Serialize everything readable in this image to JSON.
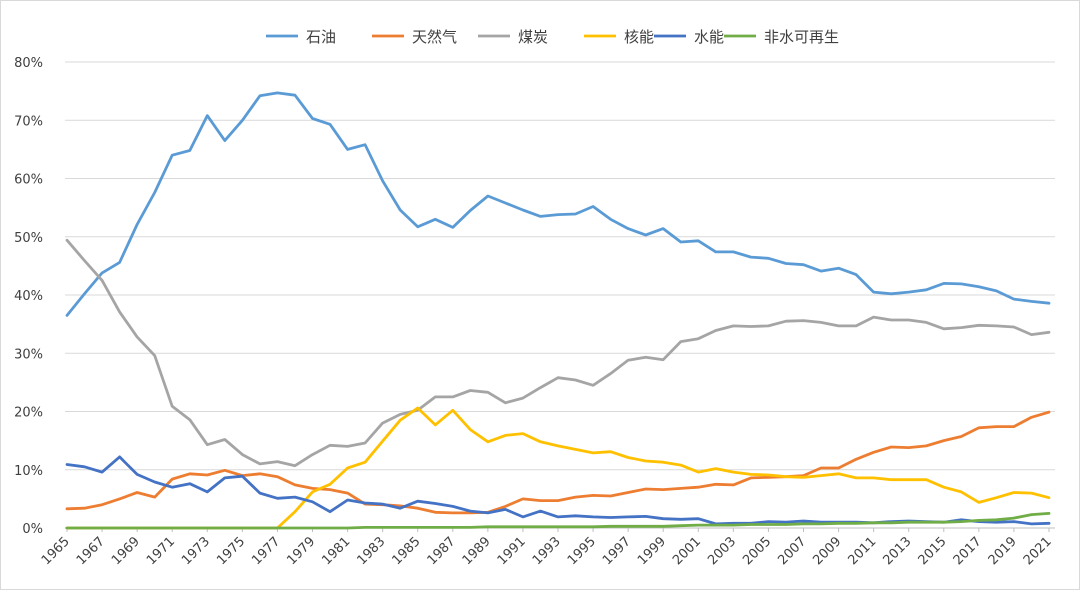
{
  "chart_data": {
    "type": "line",
    "title": "",
    "xlabel": "",
    "ylabel": "",
    "ylim": [
      0,
      80
    ],
    "y_ticks": [
      "0%",
      "10%",
      "20%",
      "30%",
      "40%",
      "50%",
      "60%",
      "70%",
      "80%"
    ],
    "grid": "horizontal",
    "legend_position": "top",
    "x": [
      1965,
      1966,
      1967,
      1968,
      1969,
      1970,
      1971,
      1972,
      1973,
      1974,
      1975,
      1976,
      1977,
      1978,
      1979,
      1980,
      1981,
      1982,
      1983,
      1984,
      1985,
      1986,
      1987,
      1988,
      1989,
      1990,
      1991,
      1992,
      1993,
      1994,
      1995,
      1996,
      1997,
      1998,
      1999,
      2000,
      2001,
      2002,
      2003,
      2004,
      2005,
      2006,
      2007,
      2008,
      2009,
      2010,
      2011,
      2012,
      2013,
      2014,
      2015,
      2016,
      2017,
      2018,
      2019,
      2020,
      2021
    ],
    "x_tick_labels": [
      "1965",
      "1967",
      "1969",
      "1971",
      "1973",
      "1975",
      "1977",
      "1979",
      "1981",
      "1983",
      "1985",
      "1987",
      "1989",
      "1991",
      "1993",
      "1995",
      "1997",
      "1999",
      "2001",
      "2003",
      "2005",
      "2007",
      "2009",
      "2011",
      "2013",
      "2015",
      "2017",
      "2019",
      "2021"
    ],
    "series": [
      {
        "name": "石油",
        "color": "#5b9bd5",
        "values": [
          36.5,
          40.2,
          43.8,
          45.6,
          52.1,
          57.6,
          64.0,
          64.8,
          70.8,
          66.5,
          70.0,
          74.2,
          74.7,
          74.3,
          70.3,
          69.3,
          65.0,
          65.8,
          59.6,
          54.6,
          51.7,
          53.0,
          51.6,
          54.5,
          57.0,
          55.8,
          54.6,
          53.5,
          53.8,
          53.9,
          55.2,
          53.0,
          51.4,
          50.3,
          51.4,
          49.1,
          49.3,
          47.4,
          47.4,
          46.5,
          46.3,
          45.4,
          45.2,
          44.1,
          44.6,
          43.5,
          40.5,
          40.2,
          40.5,
          40.9,
          42.0,
          41.9,
          41.4,
          40.7,
          39.3,
          38.9,
          38.6
        ]
      },
      {
        "name": "天然气",
        "color": "#ed7d31",
        "values": [
          3.3,
          3.4,
          4.0,
          5.0,
          6.1,
          5.3,
          8.4,
          9.3,
          9.1,
          9.9,
          9.0,
          9.3,
          8.8,
          7.4,
          6.8,
          6.6,
          6.0,
          4.1,
          4.0,
          3.8,
          3.4,
          2.7,
          2.6,
          2.6,
          2.7,
          3.7,
          5.0,
          4.7,
          4.7,
          5.3,
          5.6,
          5.5,
          6.1,
          6.7,
          6.6,
          6.8,
          7.0,
          7.5,
          7.4,
          8.6,
          8.7,
          8.8,
          9.0,
          10.3,
          10.3,
          11.8,
          13.0,
          13.9,
          13.8,
          14.1,
          15.0,
          15.7,
          17.2,
          17.4,
          17.4,
          19.0,
          19.9
        ]
      },
      {
        "name": "煤炭",
        "color": "#a5a5a5",
        "values": [
          49.4,
          45.9,
          42.5,
          37.1,
          32.8,
          29.6,
          20.9,
          18.6,
          14.3,
          15.2,
          12.6,
          11.0,
          11.4,
          10.7,
          12.6,
          14.2,
          14.0,
          14.6,
          18.0,
          19.5,
          20.2,
          22.5,
          22.5,
          23.6,
          23.3,
          21.5,
          22.3,
          24.1,
          25.8,
          25.4,
          24.5,
          26.5,
          28.8,
          29.3,
          28.9,
          32.0,
          32.5,
          33.9,
          34.7,
          34.6,
          34.7,
          35.5,
          35.6,
          35.3,
          34.7,
          34.7,
          36.2,
          35.7,
          35.7,
          35.3,
          34.2,
          34.4,
          34.8,
          34.7,
          34.5,
          33.2,
          33.6
        ]
      },
      {
        "name": "核能",
        "color": "#ffc000",
        "values": [
          0,
          0,
          0,
          0,
          0,
          0,
          0,
          0,
          0,
          0,
          0,
          0,
          0,
          2.8,
          6.2,
          7.5,
          10.3,
          11.3,
          14.9,
          18.5,
          20.6,
          17.7,
          20.2,
          16.9,
          14.8,
          15.9,
          16.2,
          14.8,
          14.1,
          13.5,
          12.9,
          13.1,
          12.1,
          11.5,
          11.3,
          10.8,
          9.6,
          10.2,
          9.6,
          9.2,
          9.1,
          8.8,
          8.7,
          9.0,
          9.3,
          8.6,
          8.6,
          8.3,
          8.3,
          8.3,
          7.0,
          6.2,
          4.4,
          5.2,
          6.1,
          6.0,
          5.2
        ]
      },
      {
        "name": "水能",
        "color": "#4472c4",
        "values": [
          10.9,
          10.5,
          9.6,
          12.2,
          9.2,
          7.9,
          7.0,
          7.6,
          6.2,
          8.6,
          8.9,
          6.0,
          5.1,
          5.3,
          4.5,
          2.8,
          4.8,
          4.3,
          4.1,
          3.4,
          4.6,
          4.2,
          3.7,
          2.9,
          2.6,
          3.2,
          1.9,
          2.9,
          1.9,
          2.1,
          1.9,
          1.8,
          1.9,
          2.0,
          1.6,
          1.5,
          1.6,
          0.7,
          0.8,
          0.8,
          1.1,
          1.0,
          1.2,
          1.0,
          1.0,
          1.0,
          0.9,
          1.1,
          1.2,
          1.1,
          1.0,
          1.4,
          1.1,
          1.0,
          1.1,
          0.7,
          0.8
        ]
      },
      {
        "name": "非水可再生",
        "color": "#70ad47",
        "values": [
          0,
          0,
          0,
          0,
          0,
          0,
          0,
          0,
          0,
          0,
          0,
          0,
          0,
          0,
          0,
          0,
          0,
          0.1,
          0.1,
          0.1,
          0.1,
          0.1,
          0.1,
          0.1,
          0.2,
          0.2,
          0.2,
          0.2,
          0.2,
          0.2,
          0.2,
          0.3,
          0.3,
          0.3,
          0.3,
          0.4,
          0.5,
          0.5,
          0.5,
          0.6,
          0.6,
          0.6,
          0.7,
          0.7,
          0.8,
          0.8,
          0.9,
          0.9,
          1.0,
          1.0,
          1.0,
          1.1,
          1.3,
          1.4,
          1.7,
          2.3,
          2.5
        ]
      }
    ]
  }
}
